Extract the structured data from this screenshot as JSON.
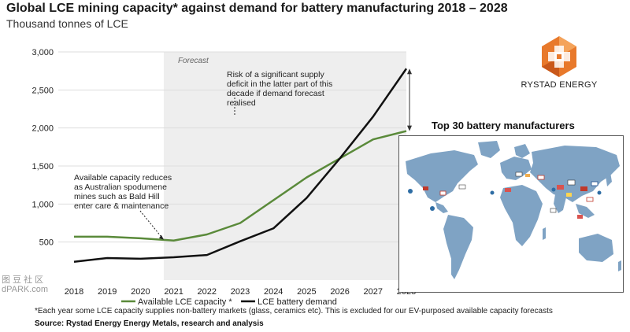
{
  "header": {
    "title": "Global LCE mining capacity* against demand for battery manufacturing 2018 – 2028",
    "subtitle": "Thousand tonnes of LCE"
  },
  "logo": {
    "text": "RYSTAD ENERGY",
    "icon": "rystad-logo-icon"
  },
  "inset": {
    "title": "Top 30 battery manufacturers",
    "icon": "world-map-icon"
  },
  "footnote": "*Each year some LCE capacity supplies non-battery markets (glass, ceramics etc). This is excluded for our EV-purposed available capacity forecasts",
  "source": "Source: Rystad Energy Energy Metals, research and analysis",
  "watermark": {
    "line1": "图 豆 社 区",
    "line2": "dPARK.com"
  },
  "colors": {
    "capacity": "#5a8a3a",
    "demand": "#111111",
    "forecast_band": "#eeeeee"
  },
  "chart_data": {
    "type": "line",
    "x": [
      2018,
      2019,
      2020,
      2021,
      2022,
      2023,
      2024,
      2025,
      2026,
      2027,
      2028
    ],
    "xticks": [
      "2018",
      "2019",
      "2020",
      "2021",
      "2022",
      "2023",
      "2024",
      "2025",
      "2026",
      "2027",
      "2028"
    ],
    "ylim": [
      0,
      3000
    ],
    "yticks": [
      "500",
      "1,000",
      "1,500",
      "2,000",
      "2,500",
      "3,000"
    ],
    "ytick_values": [
      500,
      1000,
      1500,
      2000,
      2500,
      3000
    ],
    "forecast_range": [
      2020.7,
      2028
    ],
    "forecast_label": "Forecast",
    "legend": "bottom",
    "series": [
      {
        "name": "Available LCE capacity *",
        "values": [
          570,
          570,
          550,
          520,
          600,
          750,
          1050,
          1350,
          1600,
          1850,
          1960
        ]
      },
      {
        "name": "LCE battery demand",
        "values": [
          240,
          290,
          280,
          300,
          330,
          510,
          680,
          1080,
          1600,
          2150,
          2780
        ]
      }
    ],
    "annotations": {
      "capacity_note": [
        "Available capacity reduces",
        "as Australian spodumene",
        "mines such as Bald Hill",
        "enter care & maintenance"
      ],
      "deficit_note": [
        "Risk of a significant supply",
        "deficit in the latter part of this",
        "decade if demand forecast",
        "realised"
      ]
    }
  }
}
